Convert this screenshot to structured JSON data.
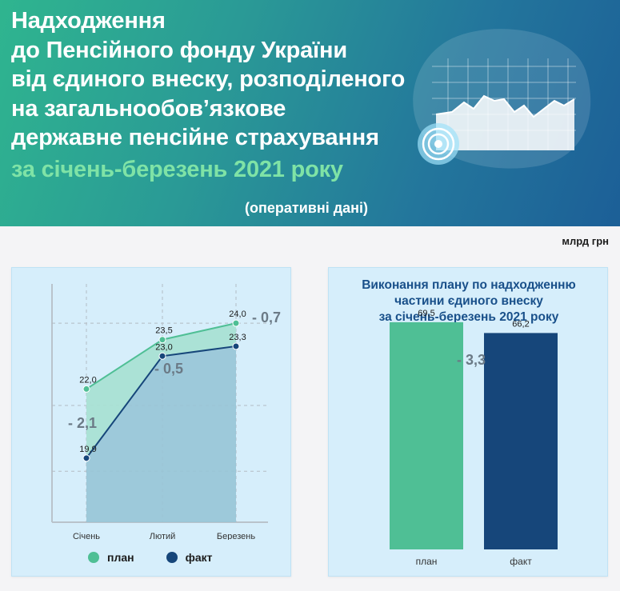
{
  "header": {
    "title_lines": [
      "Надходження",
      "до Пенсійного фонду України",
      "від єдиного внеску, розподіленого",
      "на загальнообов’язкове",
      "державне пенсійне страхування"
    ],
    "period": "за січень-березень 2021 року",
    "note": "(оперативні дані)"
  },
  "unit_label": "млрд грн",
  "colors": {
    "plan": "#4fbf95",
    "fact": "#16467a",
    "diff_text": "#6b7a86",
    "panel_bg": "#d6eefb",
    "bar_title": "#19508a"
  },
  "legend": {
    "plan": "план",
    "fact": "факт"
  },
  "chart_data": [
    {
      "type": "line",
      "categories": [
        "Січень",
        "Лютий",
        "Березень"
      ],
      "series": [
        {
          "name": "план",
          "values": [
            22.0,
            23.5,
            24.0
          ],
          "labels": [
            "22,0",
            "23,5",
            "24,0"
          ]
        },
        {
          "name": "факт",
          "values": [
            19.9,
            23.0,
            23.3
          ],
          "labels": [
            "19,9",
            "23,0",
            "23,3"
          ]
        }
      ],
      "differences": [
        "- 2,1",
        "- 0,5",
        "- 0,7"
      ],
      "ylim": [
        18.0,
        25.0
      ],
      "grid": true,
      "legend_position": "bottom"
    },
    {
      "type": "bar",
      "title_lines": [
        "Виконання плану по надходженню",
        "частини єдиного внеску",
        "за січень-березень 2021 року"
      ],
      "categories": [
        "план",
        "факт"
      ],
      "values": [
        69.5,
        66.2
      ],
      "labels": [
        "69,5",
        "66,2"
      ],
      "difference": "- 3,3",
      "ylim": [
        0,
        80
      ]
    }
  ]
}
